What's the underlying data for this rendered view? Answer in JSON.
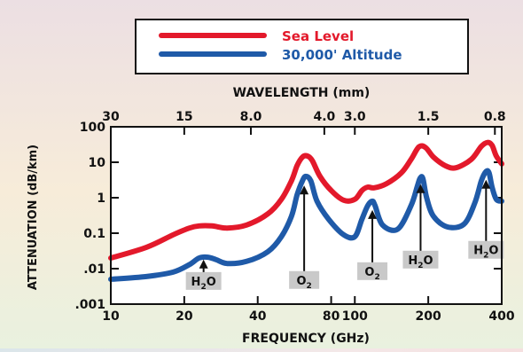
{
  "chart_data": {
    "type": "line",
    "xlabel": "FREQUENCY (GHz)",
    "ylabel": "ATTENUATION (dB/km)",
    "top_axis_title": "WAVELENGTH (mm)",
    "x_scale": "log",
    "y_scale": "log",
    "xlim": [
      10,
      400
    ],
    "ylim": [
      0.001,
      100
    ],
    "x_ticks": [
      {
        "value": 10,
        "label": "10"
      },
      {
        "value": 20,
        "label": "20"
      },
      {
        "value": 40,
        "label": "40"
      },
      {
        "value": 80,
        "label": "80"
      },
      {
        "value": 100,
        "label": "100"
      },
      {
        "value": 200,
        "label": "200"
      },
      {
        "value": 400,
        "label": "400"
      }
    ],
    "y_ticks": [
      {
        "value": 0.001,
        "label": ".001"
      },
      {
        "value": 0.01,
        "label": ".01"
      },
      {
        "value": 0.1,
        "label": "0.1"
      },
      {
        "value": 1,
        "label": "1"
      },
      {
        "value": 10,
        "label": "10"
      },
      {
        "value": 100,
        "label": "100"
      }
    ],
    "top_ticks": [
      {
        "value": 10,
        "label": "30"
      },
      {
        "value": 20,
        "label": "15"
      },
      {
        "value": 37.5,
        "label": "8.0"
      },
      {
        "value": 75,
        "label": "4.0"
      },
      {
        "value": 100,
        "label": "3.0"
      },
      {
        "value": 200,
        "label": "1.5"
      },
      {
        "value": 375,
        "label": "0.8"
      }
    ],
    "legend_position": "top",
    "series": [
      {
        "name": "Sea Level",
        "color": "#e3192b",
        "points": [
          [
            10,
            0.02
          ],
          [
            14,
            0.04
          ],
          [
            18,
            0.09
          ],
          [
            21,
            0.14
          ],
          [
            23,
            0.16
          ],
          [
            26,
            0.16
          ],
          [
            30,
            0.14
          ],
          [
            36,
            0.17
          ],
          [
            44,
            0.35
          ],
          [
            50,
            0.9
          ],
          [
            55,
            3
          ],
          [
            58,
            8
          ],
          [
            61,
            14
          ],
          [
            64,
            15
          ],
          [
            67,
            11
          ],
          [
            72,
            4
          ],
          [
            80,
            1.6
          ],
          [
            90,
            0.85
          ],
          [
            100,
            0.9
          ],
          [
            107,
            1.6
          ],
          [
            113,
            2
          ],
          [
            120,
            1.9
          ],
          [
            135,
            2.5
          ],
          [
            155,
            5
          ],
          [
            170,
            12
          ],
          [
            183,
            27
          ],
          [
            195,
            26
          ],
          [
            210,
            14
          ],
          [
            235,
            8
          ],
          [
            260,
            7
          ],
          [
            300,
            12
          ],
          [
            330,
            28
          ],
          [
            350,
            36
          ],
          [
            365,
            30
          ],
          [
            380,
            15
          ],
          [
            400,
            9
          ]
        ]
      },
      {
        "name": "30,000' Altitude",
        "color": "#1f5aa8",
        "points": [
          [
            10,
            0.005
          ],
          [
            14,
            0.006
          ],
          [
            18,
            0.008
          ],
          [
            21,
            0.013
          ],
          [
            23,
            0.02
          ],
          [
            25,
            0.021
          ],
          [
            27,
            0.018
          ],
          [
            30,
            0.014
          ],
          [
            36,
            0.016
          ],
          [
            44,
            0.03
          ],
          [
            50,
            0.08
          ],
          [
            55,
            0.3
          ],
          [
            58,
            1.2
          ],
          [
            61,
            3
          ],
          [
            63,
            4
          ],
          [
            66,
            3
          ],
          [
            70,
            0.8
          ],
          [
            78,
            0.25
          ],
          [
            90,
            0.09
          ],
          [
            100,
            0.08
          ],
          [
            107,
            0.25
          ],
          [
            113,
            0.6
          ],
          [
            118,
            0.8
          ],
          [
            121,
            0.6
          ],
          [
            130,
            0.17
          ],
          [
            150,
            0.13
          ],
          [
            170,
            0.6
          ],
          [
            180,
            2
          ],
          [
            185,
            3.5
          ],
          [
            190,
            3.5
          ],
          [
            197,
            1
          ],
          [
            210,
            0.3
          ],
          [
            240,
            0.15
          ],
          [
            280,
            0.18
          ],
          [
            310,
            0.7
          ],
          [
            330,
            3
          ],
          [
            345,
            5.5
          ],
          [
            355,
            5
          ],
          [
            365,
            2
          ],
          [
            380,
            0.9
          ],
          [
            400,
            0.8
          ]
        ]
      }
    ],
    "annotations": [
      {
        "label_main": "H",
        "label_sub": "2",
        "label_tail": "O",
        "freq": 24,
        "box_value": 0.0045,
        "arrow_from": 0.0065,
        "arrow_to": 0.018
      },
      {
        "label_main": "O",
        "label_sub": "2",
        "label_tail": "",
        "freq": 62,
        "box_value": 0.0048,
        "arrow_from": 0.007,
        "arrow_to": 2.2
      },
      {
        "label_main": "O",
        "label_sub": "2",
        "label_tail": "",
        "freq": 118,
        "box_value": 0.0085,
        "arrow_from": 0.013,
        "arrow_to": 0.45
      },
      {
        "label_main": "H",
        "label_sub": "2",
        "label_tail": "O",
        "freq": 186,
        "box_value": 0.018,
        "arrow_from": 0.028,
        "arrow_to": 2.4
      },
      {
        "label_main": "H",
        "label_sub": "2",
        "label_tail": "O",
        "freq": 345,
        "box_value": 0.034,
        "arrow_from": 0.05,
        "arrow_to": 3.2
      }
    ]
  }
}
